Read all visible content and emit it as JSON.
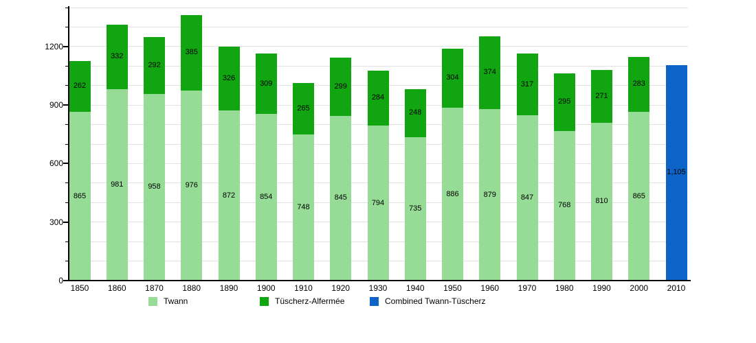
{
  "chart_data": {
    "type": "bar",
    "stacked": true,
    "title": "",
    "xlabel": "",
    "ylabel": "",
    "categories": [
      "1850",
      "1860",
      "1870",
      "1880",
      "1890",
      "1900",
      "1910",
      "1920",
      "1930",
      "1940",
      "1950",
      "1960",
      "1970",
      "1980",
      "1990",
      "2000",
      "2010"
    ],
    "series": [
      {
        "name": "Twann",
        "color": "#96DC96",
        "values": [
          865,
          981,
          958,
          976,
          872,
          854,
          748,
          845,
          794,
          735,
          886,
          879,
          847,
          768,
          810,
          865,
          null
        ]
      },
      {
        "name": "Tüscherz-Alfermée",
        "color": "#12A512",
        "values": [
          262,
          332,
          292,
          385,
          326,
          309,
          265,
          299,
          284,
          248,
          304,
          374,
          317,
          295,
          271,
          283,
          null
        ]
      },
      {
        "name": "Combined Twann-Tüscherz",
        "color": "#0D63C8",
        "values": [
          null,
          null,
          null,
          null,
          null,
          null,
          null,
          null,
          null,
          null,
          null,
          null,
          null,
          null,
          null,
          null,
          1105
        ]
      }
    ],
    "segment_labels": [
      [
        "865",
        "981",
        "958",
        "976",
        "872",
        "854",
        "748",
        "845",
        "794",
        "735",
        "886",
        "879",
        "847",
        "768",
        "810",
        "865",
        ""
      ],
      [
        "262",
        "332",
        "292",
        "385",
        "326",
        "309",
        "265",
        "299",
        "284",
        "248",
        "304",
        "374",
        "317",
        "295",
        "271",
        "283",
        ""
      ],
      [
        "",
        "",
        "",
        "",
        "",
        "",
        "",
        "",
        "",
        "",
        "",
        "",
        "",
        "",
        "",
        "",
        "1,105"
      ]
    ],
    "ylim": [
      0,
      1400
    ],
    "ytick_values": [
      0,
      300,
      600,
      900,
      1200
    ],
    "ytick_labels": [
      "0",
      "300",
      "600",
      "900",
      "1200"
    ],
    "grid_step": 100,
    "grid_on": true,
    "legend_position": "bottom",
    "legend": [
      {
        "label": "Twann",
        "color": "#96DC96"
      },
      {
        "label": "Tüscherz-Alfermée",
        "color": "#12A512"
      },
      {
        "label": "Combined Twann-Tüscherz",
        "color": "#0D63C8"
      }
    ]
  }
}
